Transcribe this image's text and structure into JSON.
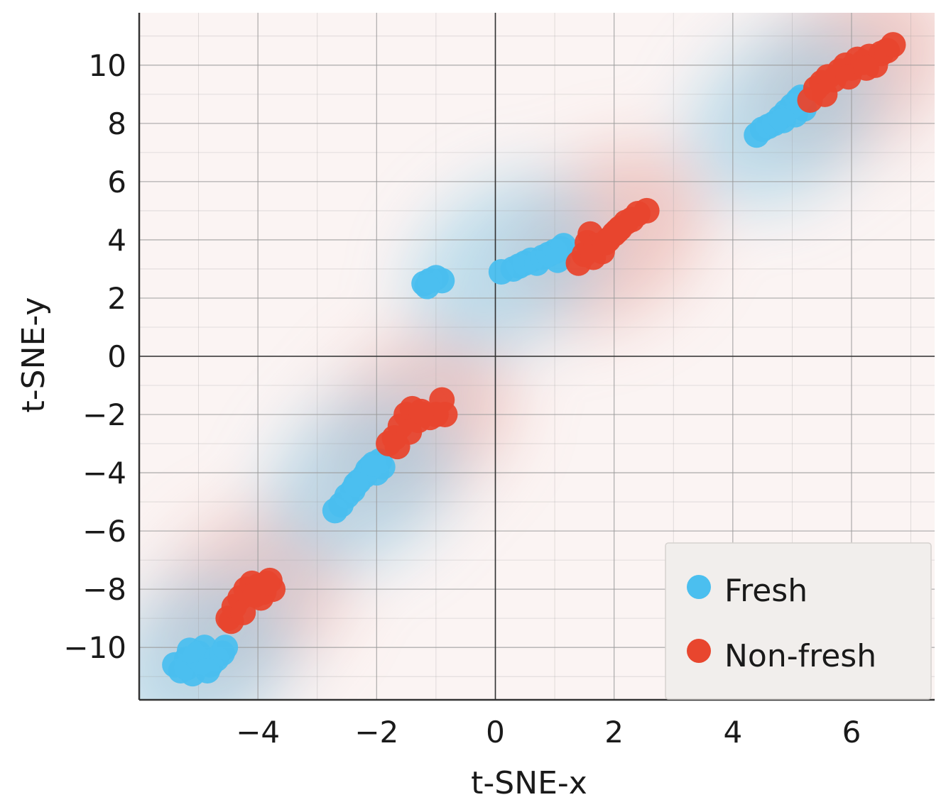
{
  "chart_data": {
    "type": "scatter",
    "title": "",
    "xlabel": "t-SNE-x",
    "ylabel": "t-SNE-y",
    "xlim": [
      -6.0,
      7.4
    ],
    "ylim": [
      -11.8,
      11.8
    ],
    "x_ticks": [
      -4,
      -2,
      0,
      2,
      4,
      6
    ],
    "x_tick_labels": [
      "−4",
      "−2",
      "0",
      "2",
      "4",
      "6"
    ],
    "y_ticks": [
      -10,
      -8,
      -6,
      -4,
      -2,
      0,
      2,
      4,
      6,
      8,
      10
    ],
    "y_tick_labels": [
      "−10",
      "−8",
      "−6",
      "−4",
      "−2",
      "0",
      "2",
      "4",
      "6",
      "8",
      "10"
    ],
    "grid": true,
    "background": "decision-boundary heatmap (blue = Fresh region, red = Non-fresh region)",
    "legend_position": "bottom-right",
    "colors": {
      "fresh": "#4bbfef",
      "non_fresh": "#e8462e",
      "fresh_region": "#8ccbe6",
      "non_fresh_region": "#e5a39a",
      "grid": "#9a9a9a",
      "axis": "#333333",
      "legend_bg": "#f1eeec"
    },
    "series": [
      {
        "name": "Fresh",
        "points": [
          [
            -5.4,
            -10.6
          ],
          [
            -5.3,
            -10.8
          ],
          [
            -5.2,
            -10.4
          ],
          [
            -5.1,
            -10.9
          ],
          [
            -5.2,
            -10.7
          ],
          [
            -5.0,
            -10.2
          ],
          [
            -4.9,
            -10.0
          ],
          [
            -4.95,
            -10.5
          ],
          [
            -5.05,
            -10.3
          ],
          [
            -4.8,
            -10.6
          ],
          [
            -4.7,
            -10.4
          ],
          [
            -4.6,
            -10.2
          ],
          [
            -4.55,
            -10.0
          ],
          [
            -4.85,
            -10.8
          ],
          [
            -5.15,
            -10.1
          ],
          [
            -2.7,
            -5.3
          ],
          [
            -2.6,
            -5.1
          ],
          [
            -2.5,
            -4.8
          ],
          [
            -2.4,
            -4.6
          ],
          [
            -2.3,
            -4.3
          ],
          [
            -2.2,
            -4.1
          ],
          [
            -2.1,
            -3.8
          ],
          [
            -2.0,
            -4.0
          ],
          [
            -1.9,
            -3.8
          ],
          [
            -1.95,
            -3.6
          ],
          [
            -2.15,
            -3.9
          ],
          [
            -2.35,
            -4.4
          ],
          [
            -2.05,
            -3.7
          ],
          [
            -1.2,
            2.5
          ],
          [
            -1.1,
            2.6
          ],
          [
            -1.0,
            2.7
          ],
          [
            -0.9,
            2.6
          ],
          [
            -1.15,
            2.4
          ],
          [
            0.1,
            2.9
          ],
          [
            0.3,
            3.0
          ],
          [
            0.4,
            3.1
          ],
          [
            0.5,
            3.2
          ],
          [
            0.6,
            3.3
          ],
          [
            0.7,
            3.2
          ],
          [
            0.8,
            3.4
          ],
          [
            0.9,
            3.5
          ],
          [
            1.0,
            3.6
          ],
          [
            1.1,
            3.7
          ],
          [
            1.15,
            3.8
          ],
          [
            1.05,
            3.3
          ],
          [
            4.4,
            7.6
          ],
          [
            4.5,
            7.8
          ],
          [
            4.6,
            7.9
          ],
          [
            4.7,
            8.0
          ],
          [
            4.8,
            8.2
          ],
          [
            4.9,
            8.4
          ],
          [
            5.0,
            8.6
          ],
          [
            5.1,
            8.8
          ],
          [
            5.2,
            8.5
          ],
          [
            5.05,
            8.3
          ],
          [
            4.85,
            8.1
          ],
          [
            5.15,
            8.9
          ]
        ]
      },
      {
        "name": "Non-fresh",
        "points": [
          [
            -4.5,
            -9.0
          ],
          [
            -4.45,
            -9.1
          ],
          [
            -4.4,
            -8.6
          ],
          [
            -4.3,
            -8.3
          ],
          [
            -4.2,
            -8.0
          ],
          [
            -4.1,
            -7.8
          ],
          [
            -4.0,
            -7.9
          ],
          [
            -3.9,
            -8.1
          ],
          [
            -3.8,
            -7.7
          ],
          [
            -3.75,
            -8.0
          ],
          [
            -3.95,
            -8.3
          ],
          [
            -4.25,
            -8.8
          ],
          [
            -4.05,
            -8.2
          ],
          [
            -3.85,
            -7.8
          ],
          [
            -1.8,
            -3.0
          ],
          [
            -1.7,
            -2.8
          ],
          [
            -1.6,
            -2.4
          ],
          [
            -1.5,
            -2.0
          ],
          [
            -1.4,
            -1.8
          ],
          [
            -1.3,
            -2.2
          ],
          [
            -1.2,
            -2.0
          ],
          [
            -1.1,
            -2.1
          ],
          [
            -1.0,
            -2.0
          ],
          [
            -0.9,
            -1.5
          ],
          [
            -0.85,
            -2.0
          ],
          [
            -1.45,
            -2.6
          ],
          [
            -1.25,
            -1.9
          ],
          [
            -1.65,
            -3.1
          ],
          [
            1.4,
            3.2
          ],
          [
            1.5,
            3.5
          ],
          [
            1.55,
            3.9
          ],
          [
            1.6,
            4.2
          ],
          [
            1.7,
            3.8
          ],
          [
            1.8,
            3.6
          ],
          [
            1.9,
            4.0
          ],
          [
            2.0,
            4.2
          ],
          [
            2.1,
            4.4
          ],
          [
            2.2,
            4.6
          ],
          [
            2.3,
            4.7
          ],
          [
            2.4,
            4.9
          ],
          [
            2.55,
            5.0
          ],
          [
            1.65,
            3.4
          ],
          [
            1.85,
            3.9
          ],
          [
            2.05,
            4.3
          ],
          [
            5.3,
            8.8
          ],
          [
            5.4,
            9.2
          ],
          [
            5.5,
            9.4
          ],
          [
            5.6,
            9.6
          ],
          [
            5.7,
            9.5
          ],
          [
            5.8,
            9.8
          ],
          [
            5.9,
            10.0
          ],
          [
            6.0,
            9.9
          ],
          [
            6.1,
            10.2
          ],
          [
            6.2,
            10.1
          ],
          [
            6.3,
            10.3
          ],
          [
            6.4,
            10.0
          ],
          [
            6.5,
            10.4
          ],
          [
            6.6,
            10.5
          ],
          [
            6.7,
            10.7
          ],
          [
            5.55,
            9.0
          ],
          [
            5.95,
            9.6
          ],
          [
            6.25,
            9.9
          ]
        ]
      }
    ]
  },
  "legend": {
    "items": [
      {
        "label": "Fresh",
        "color": "#4bbfef"
      },
      {
        "label": "Non-fresh",
        "color": "#e8462e"
      }
    ]
  }
}
